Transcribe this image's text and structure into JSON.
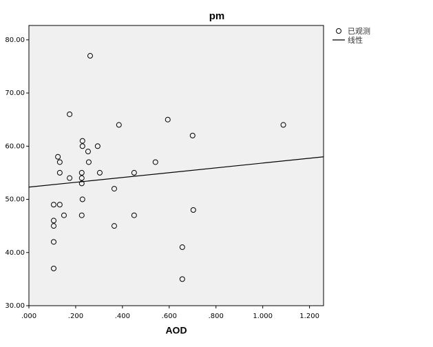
{
  "chart_data": {
    "type": "scatter",
    "title": "pm",
    "x_label": "AOD",
    "xlim": [
      0,
      1.26
    ],
    "ylim": [
      30,
      82.7
    ],
    "xticks": [
      {
        "value": 0,
        "label": ".000"
      },
      {
        "value": 0.2,
        "label": ".200"
      },
      {
        "value": 0.4,
        "label": ".400"
      },
      {
        "value": 0.6,
        "label": ".600"
      },
      {
        "value": 0.8,
        "label": ".800"
      },
      {
        "value": 1,
        "label": "1.000"
      },
      {
        "value": 1.2,
        "label": "1.200"
      }
    ],
    "yticks": [
      {
        "value": 30,
        "label": "30.00"
      },
      {
        "value": 40,
        "label": "40.00"
      },
      {
        "value": 50,
        "label": "50.00"
      },
      {
        "value": 60,
        "label": "60.00"
      },
      {
        "value": 70,
        "label": "70.00"
      },
      {
        "value": 80,
        "label": "80.00"
      }
    ],
    "legend": "right",
    "plot_background": "#f0f0f0",
    "series": [
      {
        "name": "已观测",
        "kind": "marker",
        "color": "#000000",
        "x": [
          0.262,
          0.174,
          1.088,
          0.385,
          0.594,
          0.7,
          0.229,
          0.229,
          0.294,
          0.124,
          0.253,
          0.132,
          0.256,
          0.541,
          0.132,
          0.226,
          0.303,
          0.45,
          0.174,
          0.226,
          0.226,
          0.365,
          0.229,
          0.106,
          0.132,
          0.703,
          0.15,
          0.226,
          0.45,
          0.106,
          0.106,
          0.365,
          0.106,
          0.656,
          0.106,
          0.656
        ],
        "values": [
          77,
          66,
          64,
          64,
          65,
          62,
          61,
          60,
          60,
          58,
          59,
          57,
          57,
          57,
          55,
          55,
          55,
          55,
          54,
          54,
          53,
          52,
          50,
          49,
          49,
          48,
          47,
          47,
          47,
          46,
          45,
          45,
          42,
          41,
          37,
          35
        ]
      },
      {
        "name": "线性",
        "kind": "line",
        "color": "#000000",
        "x": [
          0,
          1.26
        ],
        "values": [
          52.3,
          58.0
        ]
      }
    ]
  }
}
